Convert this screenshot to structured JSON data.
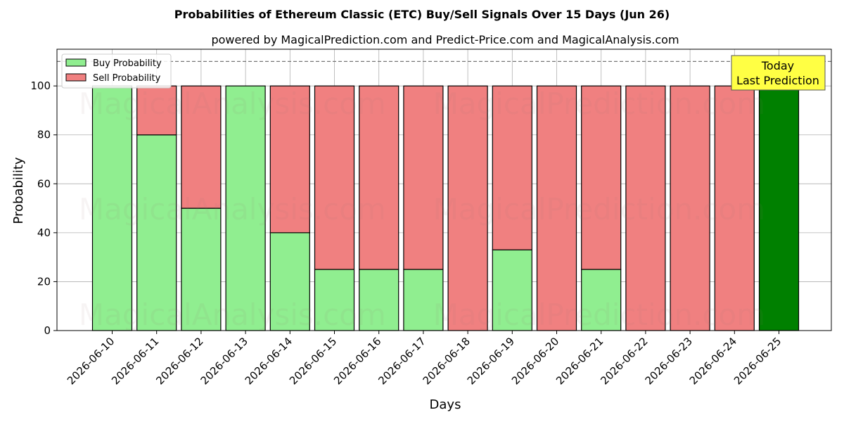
{
  "chart_data": {
    "type": "bar",
    "title": "Probabilities of Ethereum Classic (ETC) Buy/Sell Signals Over 15 Days (Jun 26)",
    "subtitle": "powered by MagicalPrediction.com and Predict-Price.com and MagicalAnalysis.com",
    "xlabel": "Days",
    "ylabel": "Probability",
    "ylim": [
      0,
      115
    ],
    "yticks": [
      0,
      20,
      40,
      60,
      80,
      100
    ],
    "grid": true,
    "stacked": true,
    "legend_position": "top-left",
    "reference_line": 110,
    "categories": [
      "2026-06-10",
      "2026-06-11",
      "2026-06-12",
      "2026-06-13",
      "2026-06-14",
      "2026-06-15",
      "2026-06-16",
      "2026-06-17",
      "2026-06-18",
      "2026-06-19",
      "2026-06-20",
      "2026-06-21",
      "2026-06-22",
      "2026-06-23",
      "2026-06-24",
      "2026-06-25"
    ],
    "series": [
      {
        "name": "Buy Probability",
        "color": "#90ee90",
        "values": [
          100,
          80,
          50,
          100,
          40,
          25,
          25,
          25,
          0,
          33,
          0,
          25,
          0,
          0,
          0,
          100
        ]
      },
      {
        "name": "Sell Probability",
        "color": "#f08080",
        "values": [
          0,
          20,
          50,
          0,
          60,
          75,
          75,
          75,
          100,
          67,
          100,
          75,
          100,
          100,
          100,
          0
        ]
      }
    ],
    "highlight": {
      "index": 15,
      "color": "#008000"
    },
    "annotation": {
      "lines": [
        "Today",
        "Last Prediction"
      ],
      "background": "#ffff44"
    },
    "watermark": "MagicalAnalysis.com     MagicalPrediction.com"
  }
}
